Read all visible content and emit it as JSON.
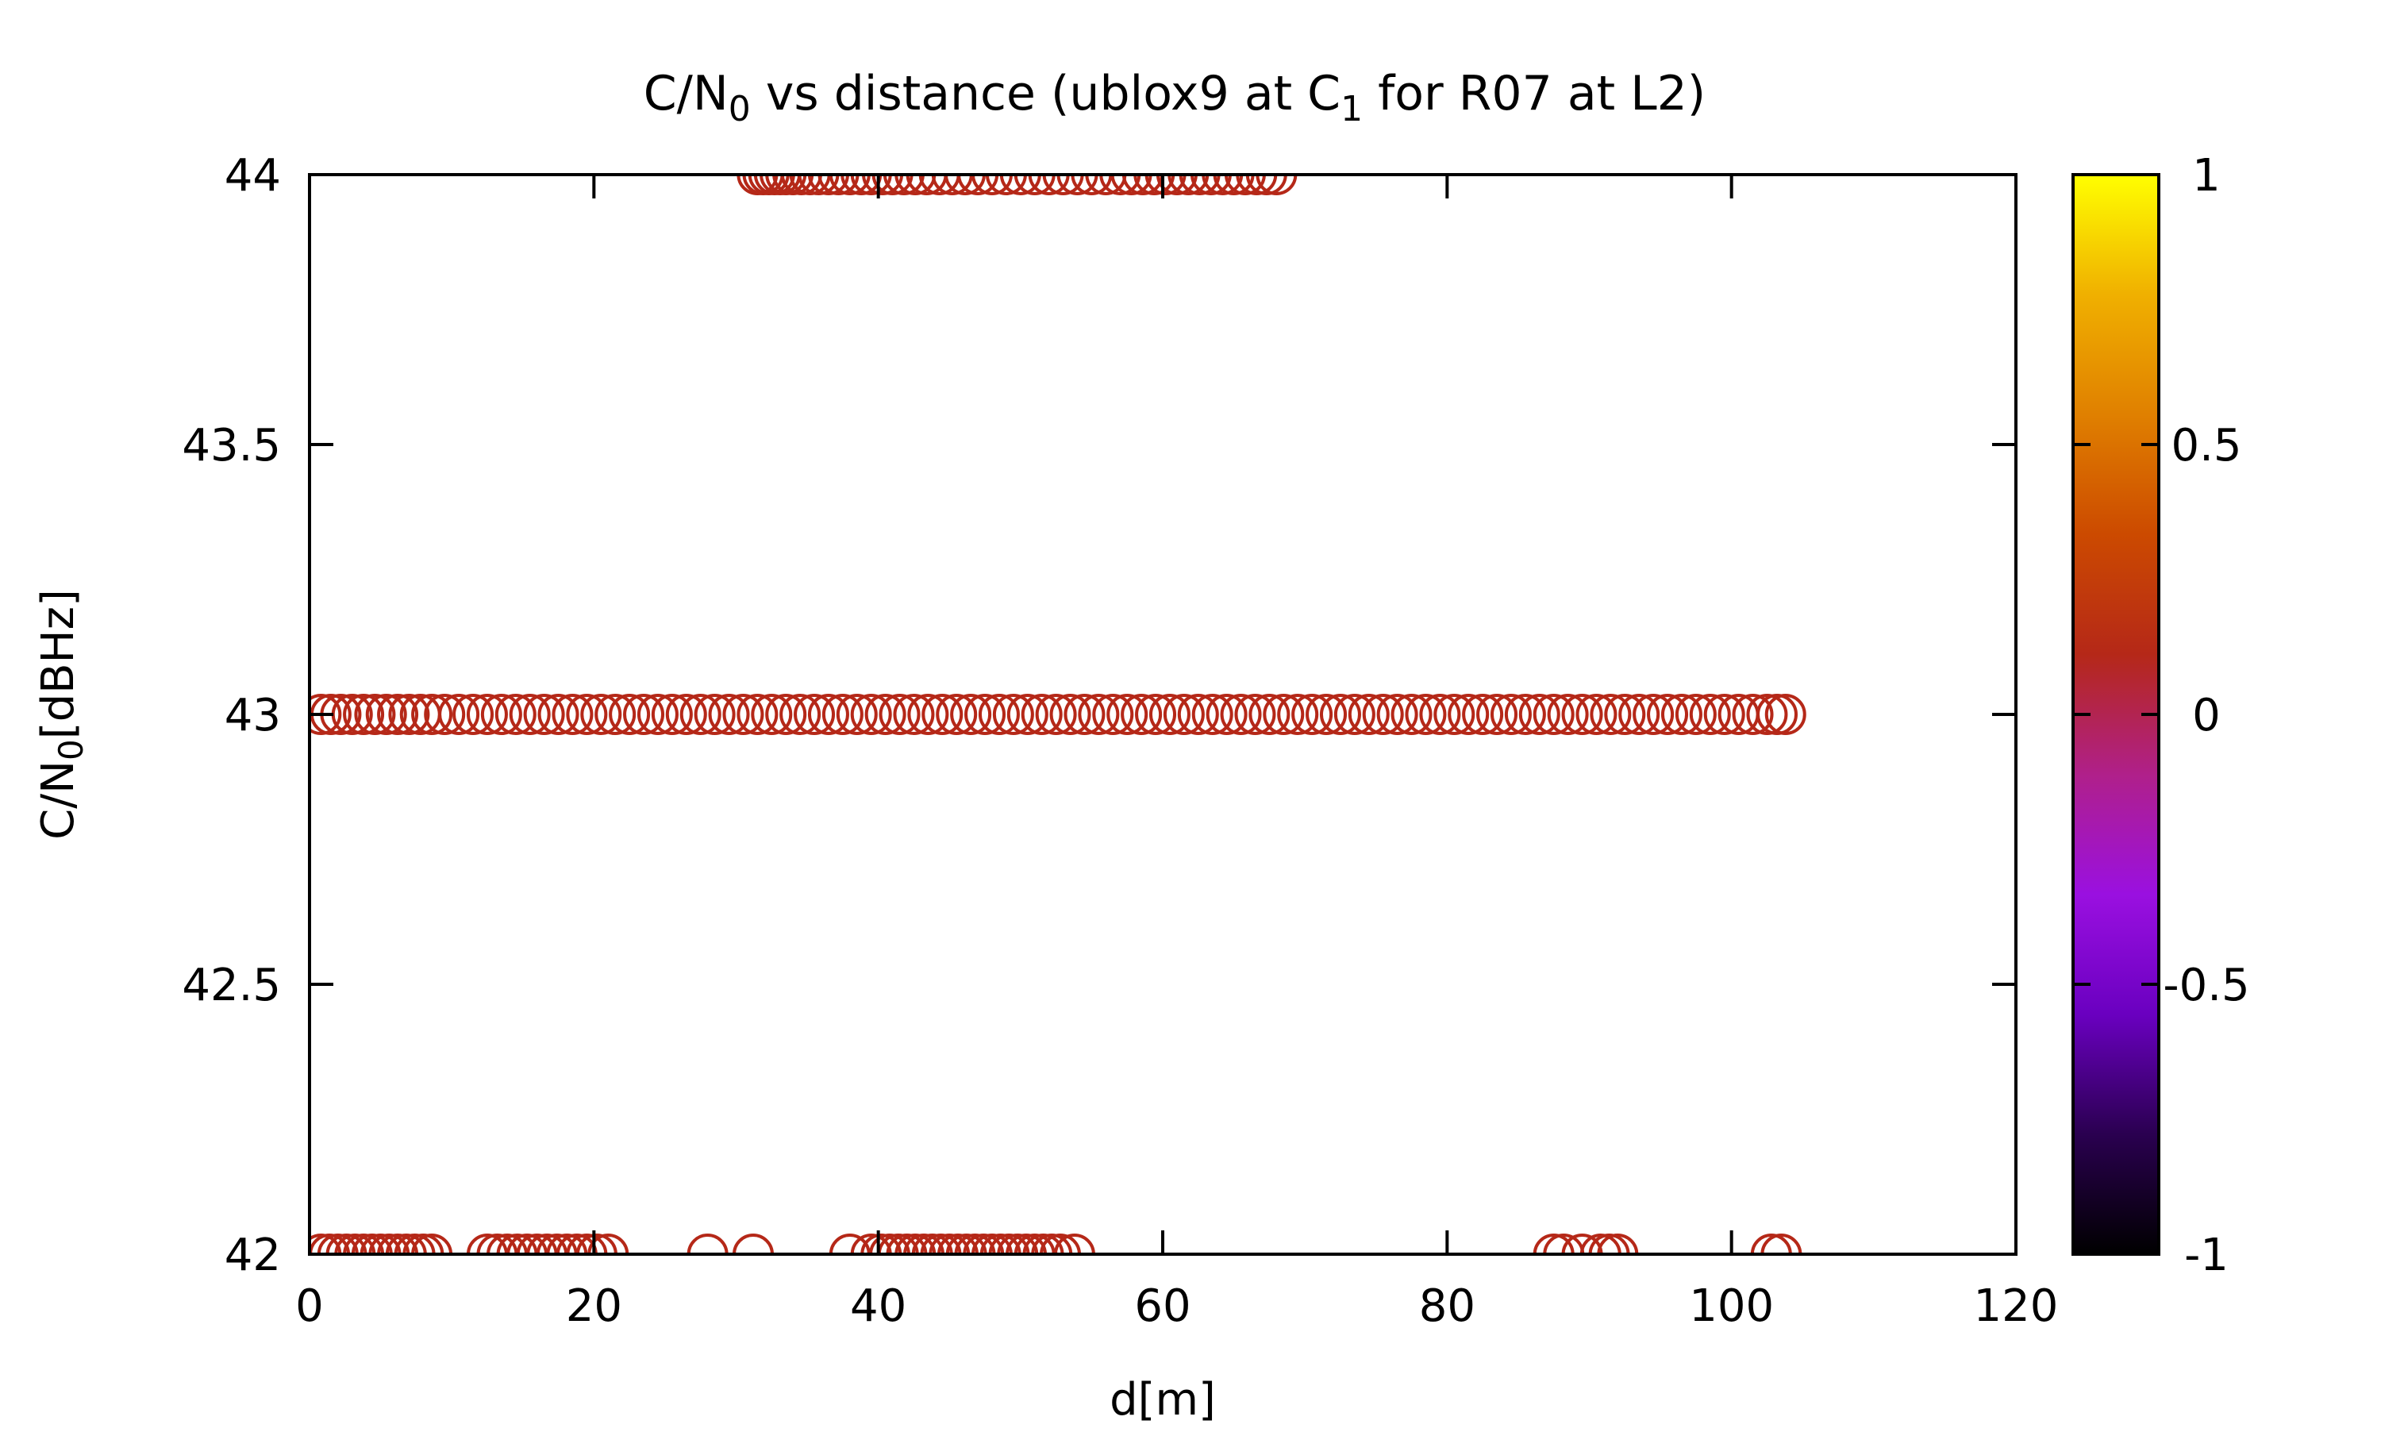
{
  "chart_data": {
    "type": "scatter",
    "title_main": "C/N",
    "title_sub": "0",
    "title_mid": " vs distance (ublox9 at C",
    "title_sub2": "1",
    "title_end": " for R07 at L2)",
    "xlabel": "d[m]",
    "ylabel_main": "C/N",
    "ylabel_sub": "0",
    "ylabel_end": "[dBHz]",
    "xlim": [
      0,
      120
    ],
    "ylim": [
      42,
      44
    ],
    "x_ticks": [
      0,
      20,
      40,
      60,
      80,
      100,
      120
    ],
    "y_ticks": [
      42,
      42.5,
      43,
      43.5,
      44
    ],
    "y_tick_labels": [
      "42",
      "42.5",
      "43",
      "43.5",
      "44"
    ],
    "colorbar": {
      "range": [
        -1,
        1
      ],
      "ticks": [
        -1,
        -0.5,
        0,
        0.5,
        1
      ],
      "tick_labels": [
        "-1",
        "-0.5",
        "0",
        "0.5",
        "1"
      ],
      "palette": [
        "#000000",
        "#2a0050",
        "#6a00c0",
        "#9a10e0",
        "#b0208a",
        "#b52818",
        "#cc4a00",
        "#e08000",
        "#f0b000",
        "#ffff00"
      ]
    },
    "marker": "open-circle",
    "marker_color": "#b52818",
    "series": [
      {
        "y": 44,
        "x": [
          31.5,
          31.9,
          32.3,
          32.7,
          33.1,
          33.5,
          34.0,
          34.6,
          35.2,
          35.8,
          36.5,
          37.2,
          38.0,
          38.8,
          39.5,
          40.3,
          41.0,
          41.8,
          42.6,
          43.4,
          44.3,
          45.2,
          46.1,
          47.0,
          48.0,
          49.0,
          50.0,
          51.0,
          52.0,
          53.0,
          54.0,
          55.0,
          56.0,
          57.0,
          57.8,
          58.6,
          59.4,
          60.2,
          61.0,
          61.8,
          62.6,
          63.4,
          64.2,
          65.0,
          65.8,
          66.6,
          67.3,
          68.0
        ]
      },
      {
        "y": 43,
        "x": [
          0.8,
          1.5,
          2.2,
          3.0,
          3.8,
          4.6,
          5.4,
          6.2,
          7.0,
          7.8,
          8.6,
          9.5,
          10.5,
          11.5,
          12.5,
          13.5,
          14.5,
          15.5,
          16.5,
          17.5,
          18.5,
          19.5,
          20.5,
          21.5,
          22.5,
          23.5,
          24.5,
          25.5,
          26.5,
          27.5,
          28.5,
          29.5,
          30.5,
          31.5,
          32.5,
          33.5,
          34.5,
          35.5,
          36.5,
          37.5,
          38.5,
          39.5,
          40.5,
          41.5,
          42.5,
          43.5,
          44.5,
          45.5,
          46.5,
          47.5,
          48.5,
          49.5,
          50.5,
          51.5,
          52.5,
          53.5,
          54.5,
          55.5,
          56.5,
          57.5,
          58.5,
          59.5,
          60.5,
          61.5,
          62.5,
          63.5,
          64.5,
          65.5,
          66.5,
          67.5,
          68.5,
          69.5,
          70.5,
          71.5,
          72.5,
          73.5,
          74.5,
          75.5,
          76.5,
          77.5,
          78.5,
          79.5,
          80.5,
          81.5,
          82.5,
          83.5,
          84.5,
          85.5,
          86.5,
          87.5,
          88.5,
          89.5,
          90.5,
          91.5,
          92.5,
          93.5,
          94.5,
          95.5,
          96.5,
          97.5,
          98.5,
          99.5,
          100.5,
          101.5,
          102.5,
          103.2,
          103.8
        ]
      },
      {
        "y": 42,
        "x": [
          0.8,
          1.4,
          2.0,
          2.6,
          3.2,
          3.8,
          4.4,
          5.0,
          5.6,
          6.2,
          6.8,
          7.4,
          8.0,
          8.6,
          12.5,
          13.2,
          13.9,
          14.6,
          15.3,
          16.0,
          16.7,
          17.4,
          18.1,
          18.8,
          19.5,
          20.2,
          21.0,
          28.0,
          31.2,
          38.0,
          39.5,
          40.2,
          40.8,
          41.4,
          42.0,
          42.6,
          43.2,
          43.8,
          44.4,
          45.0,
          45.6,
          46.2,
          46.8,
          47.4,
          48.0,
          48.6,
          49.2,
          49.8,
          50.4,
          51.0,
          51.6,
          52.2,
          52.8,
          53.8,
          87.5,
          88.2,
          89.5,
          90.8,
          91.4,
          92.0,
          102.8,
          103.5
        ]
      }
    ]
  }
}
